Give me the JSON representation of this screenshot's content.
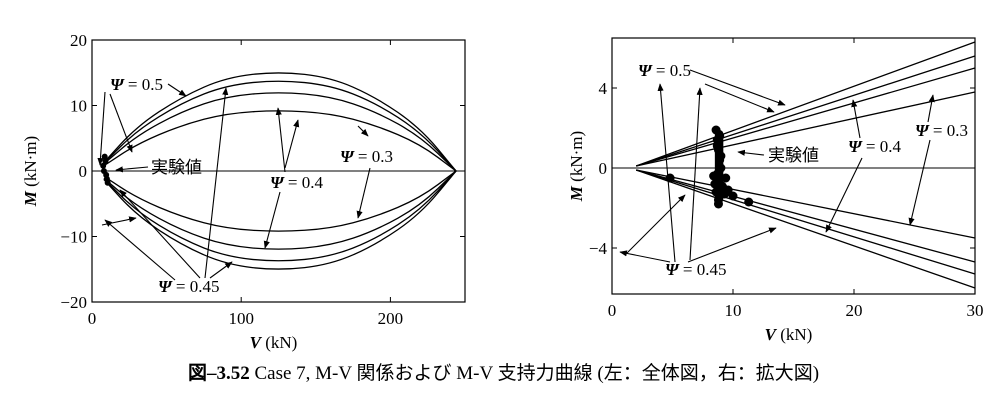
{
  "chart_data": [
    {
      "type": "line",
      "xlabel_var": "V",
      "xlabel_unit": " (kN)",
      "ylabel_var": "M",
      "ylabel_unit": " (kN·m)",
      "xlim": [
        0,
        250
      ],
      "ylim": [
        -20,
        20
      ],
      "x_ticks": [
        0,
        100,
        200
      ],
      "y_ticks": [
        -20,
        -10,
        0,
        10,
        20
      ],
      "x_tick_labels": [
        "0",
        "100",
        "200"
      ],
      "y_tick_labels": [
        "−20",
        "−10",
        "0",
        "10",
        "20"
      ],
      "series": [
        {
          "psi": 0.5,
          "x": [
            8,
            30,
            60,
            90,
            125,
            160,
            190,
            220,
            244
          ],
          "y": [
            1.3,
            6.8,
            11.3,
            14.3,
            15.2,
            14.3,
            11.3,
            6.6,
            0
          ]
        },
        {
          "psi": 0.45,
          "x": [
            8,
            30,
            60,
            90,
            125,
            160,
            190,
            220,
            244
          ],
          "y": [
            1.2,
            6.2,
            10.4,
            13.1,
            13.9,
            13.1,
            10.4,
            6.0,
            0
          ]
        },
        {
          "psi": 0.4,
          "x": [
            8,
            30,
            60,
            90,
            125,
            160,
            190,
            220,
            244
          ],
          "y": [
            1.1,
            5.4,
            9.1,
            11.4,
            12.1,
            11.4,
            9.1,
            5.3,
            0
          ]
        },
        {
          "psi": 0.3,
          "x": [
            8,
            30,
            60,
            90,
            125,
            160,
            190,
            220,
            244
          ],
          "y": [
            0.8,
            4.1,
            7.0,
            8.8,
            9.3,
            8.8,
            7.0,
            4.1,
            0
          ]
        }
      ],
      "experimental": {
        "x": [
          8,
          9,
          10,
          8.5,
          9.5,
          7.5,
          10.5
        ],
        "y": [
          0,
          1.5,
          -1.2,
          2.2,
          -0.6,
          0.8,
          -1.8
        ]
      },
      "annotations": [
        {
          "kind": "psi",
          "value": "0.5"
        },
        {
          "kind": "psi",
          "value": "0.3"
        },
        {
          "kind": "psi",
          "value": "0.4"
        },
        {
          "kind": "psi",
          "value": "0.45"
        },
        {
          "kind": "text",
          "text": "実験値"
        }
      ]
    },
    {
      "type": "line",
      "xlabel_var": "V",
      "xlabel_unit": " (kN)",
      "ylabel_var": "M",
      "ylabel_unit": " (kN·m)",
      "xlim": [
        0,
        30
      ],
      "ylim": [
        -6.3,
        6.5
      ],
      "x_ticks": [
        0,
        10,
        20,
        30
      ],
      "y_ticks": [
        -4,
        0,
        4
      ],
      "x_tick_labels": [
        "0",
        "10",
        "20",
        "30"
      ],
      "y_tick_labels": [
        "−4",
        "0",
        "4"
      ],
      "series": [
        {
          "psi": 0.5,
          "x": [
            2,
            30
          ],
          "y": [
            0.1,
            6.3
          ]
        },
        {
          "psi": 0.45,
          "x": [
            2,
            30
          ],
          "y": [
            0.1,
            5.6
          ]
        },
        {
          "psi": 0.4,
          "x": [
            2,
            30
          ],
          "y": [
            0.1,
            5.0
          ]
        },
        {
          "psi": 0.3,
          "x": [
            2,
            30
          ],
          "y": [
            0.1,
            3.8
          ]
        },
        {
          "psi": 0.5,
          "x": [
            2,
            30
          ],
          "y": [
            -0.1,
            -6.0
          ]
        },
        {
          "psi": 0.45,
          "x": [
            2,
            30
          ],
          "y": [
            -0.1,
            -5.3
          ]
        },
        {
          "psi": 0.4,
          "x": [
            2,
            30
          ],
          "y": [
            -0.1,
            -4.7
          ]
        },
        {
          "psi": 0.3,
          "x": [
            2,
            30
          ],
          "y": [
            -0.1,
            -3.5
          ]
        }
      ],
      "experimental": {
        "x": [
          8.6,
          8.7,
          8.8,
          8.9,
          9.0,
          8.7,
          8.8,
          9.1,
          8.6,
          8.9,
          9.2,
          8.5,
          8.8,
          9.3,
          8.7,
          9.0,
          8.4,
          9.4,
          8.8,
          8.9,
          9.6,
          10.0,
          4.8,
          11.3
        ],
        "y": [
          1.9,
          1.4,
          0.9,
          0.4,
          0.0,
          -0.3,
          -0.6,
          -0.9,
          -1.2,
          -1.4,
          -1.0,
          -0.8,
          -1.6,
          -1.3,
          1.1,
          0.6,
          -0.4,
          -0.5,
          -1.8,
          1.6,
          -1.1,
          -1.4,
          -0.5,
          -1.7
        ]
      },
      "annotations": [
        {
          "kind": "psi",
          "value": "0.5"
        },
        {
          "kind": "psi",
          "value": "0.4"
        },
        {
          "kind": "psi",
          "value": "0.3"
        },
        {
          "kind": "psi",
          "value": "0.45"
        },
        {
          "kind": "text",
          "text": "実験値"
        }
      ]
    }
  ],
  "psi_symbol": "Ψ",
  "psi_eq": " = ",
  "caption": {
    "number": "図–3.52",
    "text": " Case 7, M-V 関係および M-V 支持力曲線 (左：全体図，右：拡大図)"
  }
}
